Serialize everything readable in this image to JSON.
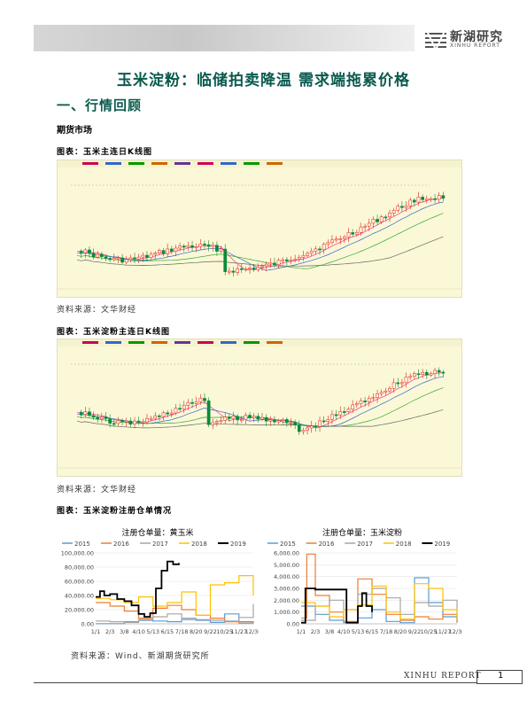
{
  "header": {
    "logo_cn": "新湖研究",
    "logo_en": "XINHU REPORT"
  },
  "title": "玉米淀粉：临储拍卖降温 需求端拖累价格",
  "section": "一、行情回顾",
  "subsection": "期货市场",
  "figures": [
    {
      "label": "图表：玉米主连日K线图",
      "source": "资料来源：文华财经"
    },
    {
      "label": "图表：玉米淀粉主连日K线图",
      "source": "资料来源：文华财经"
    },
    {
      "label": "图表：玉米淀粉注册仓单情况",
      "source": "资料来源：Wind、新湖期货研究所"
    }
  ],
  "chart_data": [
    {
      "type": "line",
      "title": "注册仓单量：黄玉米",
      "legend": [
        "2015",
        "2016",
        "2017",
        "2018",
        "2019"
      ],
      "legend_position": "top",
      "colors": {
        "2015": "#5b9bd5",
        "2016": "#ed7d31",
        "2017": "#a5a5a5",
        "2018": "#ffc000",
        "2019": "#000000"
      },
      "x_ticks": [
        "1/1",
        "2/3",
        "3/8",
        "4/10",
        "5/13",
        "6/15",
        "7/18",
        "8/20",
        "9/22",
        "10/25",
        "11/27",
        "12/30"
      ],
      "y_ticks": [
        "100,000.00",
        "80,000.00",
        "60,000.00",
        "40,000.00",
        "20,000.00",
        "0.00"
      ],
      "ylim": [
        0,
        100000
      ],
      "series": [
        {
          "name": "2015",
          "x": [
            0,
            1,
            2,
            3,
            4,
            5,
            6,
            7,
            8,
            9,
            10,
            11
          ],
          "y": [
            200,
            200,
            3000,
            5000,
            4000,
            3000,
            6000,
            5000,
            2000,
            14000,
            3000,
            1000
          ]
        },
        {
          "name": "2016",
          "x": [
            0,
            1,
            2,
            3,
            4,
            5,
            6,
            7,
            8,
            9,
            10,
            11
          ],
          "y": [
            30000,
            25000,
            18000,
            8000,
            22000,
            26000,
            20000,
            12000,
            8000,
            3000,
            1000,
            500
          ]
        },
        {
          "name": "2017",
          "x": [
            0,
            1,
            2,
            3,
            4,
            5,
            6,
            7,
            8,
            9,
            10,
            11
          ],
          "y": [
            4000,
            3000,
            2000,
            6000,
            10000,
            14000,
            8000,
            6000,
            5000,
            4000,
            9000,
            28000
          ]
        },
        {
          "name": "2018",
          "x": [
            0,
            1,
            2,
            3,
            4,
            5,
            6,
            7,
            8,
            9,
            10,
            11
          ],
          "y": [
            36000,
            34000,
            30000,
            38000,
            25000,
            30000,
            45000,
            12000,
            55000,
            58000,
            68000,
            40000
          ]
        },
        {
          "name": "2019",
          "x": [
            0,
            0.3,
            0.6,
            1,
            1.5,
            2,
            2.5,
            3,
            3.4,
            3.8,
            4.2,
            4.6,
            5,
            5.4,
            5.8
          ],
          "y": [
            38000,
            46000,
            40000,
            42000,
            35000,
            32000,
            26000,
            14000,
            10000,
            15000,
            50000,
            75000,
            88000,
            84000,
            86000
          ]
        }
      ]
    },
    {
      "type": "line",
      "title": "注册仓单量：玉米淀粉",
      "legend": [
        "2015",
        "2016",
        "2017",
        "2018",
        "2019"
      ],
      "legend_position": "top",
      "colors": {
        "2015": "#5b9bd5",
        "2016": "#ed7d31",
        "2017": "#a5a5a5",
        "2018": "#ffc000",
        "2019": "#000000"
      },
      "x_ticks": [
        "1/1",
        "2/3",
        "3/8",
        "4/10",
        "5/13",
        "6/15",
        "7/18",
        "8/20",
        "9/22",
        "10/25",
        "11/27",
        "12/30"
      ],
      "y_ticks": [
        "6,000.00",
        "5,000.00",
        "4,000.00",
        "3,000.00",
        "2,000.00",
        "1,000.00",
        "0.00"
      ],
      "ylim": [
        0,
        6000
      ],
      "series": [
        {
          "name": "2015",
          "x": [
            0,
            1,
            2,
            3,
            4,
            5,
            6,
            7,
            8,
            9,
            10,
            11
          ],
          "y": [
            1500,
            800,
            300,
            100,
            500,
            1200,
            200,
            100,
            3900,
            1800,
            600,
            100
          ]
        },
        {
          "name": "2016",
          "x": [
            0,
            0.4,
            1,
            2,
            3,
            4,
            5,
            6,
            7,
            8,
            9,
            10,
            11
          ],
          "y": [
            500,
            5900,
            2400,
            1000,
            200,
            3800,
            2500,
            800,
            300,
            600,
            400,
            800,
            100
          ]
        },
        {
          "name": "2017",
          "x": [
            0,
            1,
            2,
            3,
            4,
            5,
            6,
            7,
            8,
            9,
            10,
            11
          ],
          "y": [
            300,
            1500,
            2000,
            1200,
            2500,
            3000,
            2200,
            800,
            1800,
            1500,
            2000,
            200
          ]
        },
        {
          "name": "2018",
          "x": [
            0,
            1,
            2,
            3,
            4,
            5,
            6,
            7,
            8,
            9,
            10,
            11
          ],
          "y": [
            1800,
            1500,
            600,
            1200,
            1600,
            3200,
            1000,
            400,
            3400,
            3000,
            1200,
            400
          ]
        },
        {
          "name": "2019",
          "x": [
            0,
            0.3,
            1,
            2,
            3,
            3.2,
            3.6,
            4,
            4.3,
            4.6,
            5
          ],
          "y": [
            100,
            3000,
            2900,
            2900,
            2900,
            100,
            100,
            1500,
            2600,
            1500,
            1000
          ]
        }
      ]
    }
  ],
  "footer": {
    "text": "XINHU  REPORT",
    "page": "1"
  }
}
